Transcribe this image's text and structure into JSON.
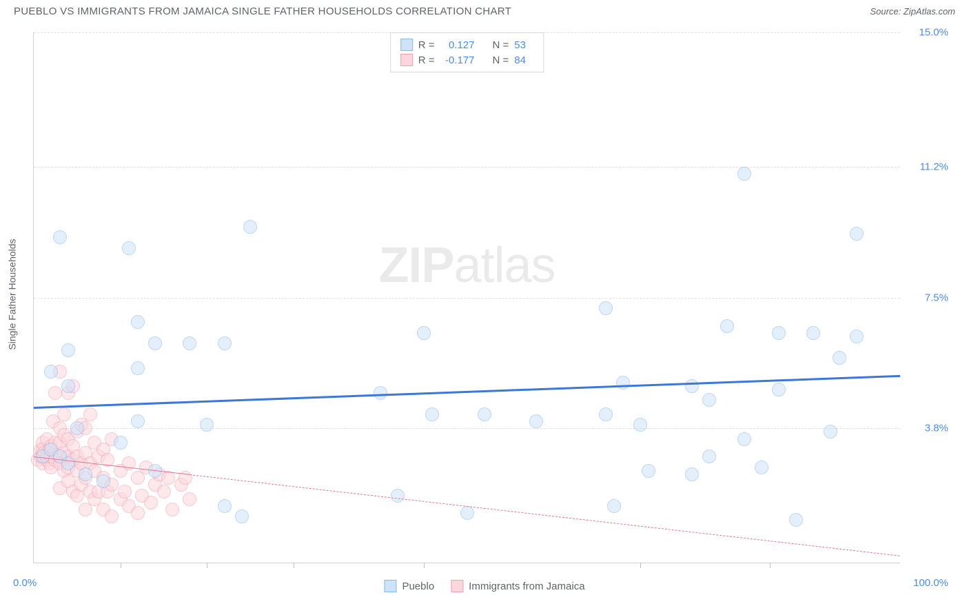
{
  "title": "PUEBLO VS IMMIGRANTS FROM JAMAICA SINGLE FATHER HOUSEHOLDS CORRELATION CHART",
  "source": "Source: ZipAtlas.com",
  "ylabel": "Single Father Households",
  "watermark_bold": "ZIP",
  "watermark_light": "atlas",
  "chart": {
    "type": "scatter",
    "xlim": [
      0,
      100
    ],
    "ylim": [
      0,
      15
    ],
    "xgrid": [
      10,
      20,
      30,
      45,
      70,
      85
    ],
    "ygrid": [
      3.8,
      7.5,
      11.2,
      15.0
    ],
    "xlim_labels": {
      "min": "0.0%",
      "max": "100.0%"
    },
    "ytick_labels": [
      "3.8%",
      "7.5%",
      "11.2%",
      "15.0%"
    ],
    "background_color": "#ffffff",
    "grid_color": "#e0e0e0",
    "point_radius": 10,
    "series": [
      {
        "name": "Pueblo",
        "fill_color": "#cde3f8",
        "stroke_color": "#8ab8e6",
        "fill_opacity": 0.55,
        "stat_r_label": "R =",
        "stat_r": "0.127",
        "stat_n_label": "N =",
        "stat_n": "53",
        "trend": {
          "y_at_xmin": 4.4,
          "y_at_xmax": 5.3,
          "color": "#3b78d8",
          "width": 3,
          "dash": "solid"
        },
        "points": [
          [
            1,
            3.0
          ],
          [
            2,
            3.2
          ],
          [
            2,
            5.4
          ],
          [
            3,
            3.0
          ],
          [
            3,
            9.2
          ],
          [
            4,
            2.8
          ],
          [
            4,
            5.0
          ],
          [
            4,
            6.0
          ],
          [
            5,
            3.8
          ],
          [
            6,
            2.5
          ],
          [
            8,
            2.3
          ],
          [
            10,
            3.4
          ],
          [
            11,
            8.9
          ],
          [
            12,
            4.0
          ],
          [
            12,
            5.5
          ],
          [
            12,
            6.8
          ],
          [
            14,
            6.2
          ],
          [
            14,
            2.6
          ],
          [
            18,
            6.2
          ],
          [
            20,
            3.9
          ],
          [
            22,
            1.6
          ],
          [
            22,
            6.2
          ],
          [
            24,
            1.3
          ],
          [
            25,
            9.5
          ],
          [
            40,
            4.8
          ],
          [
            42,
            1.9
          ],
          [
            45,
            6.5
          ],
          [
            46,
            4.2
          ],
          [
            50,
            1.4
          ],
          [
            52,
            4.2
          ],
          [
            58,
            4.0
          ],
          [
            66,
            4.2
          ],
          [
            66,
            7.2
          ],
          [
            67,
            1.6
          ],
          [
            68,
            5.1
          ],
          [
            70,
            3.9
          ],
          [
            71,
            2.6
          ],
          [
            76,
            2.5
          ],
          [
            76,
            5.0
          ],
          [
            78,
            3.0
          ],
          [
            78,
            4.6
          ],
          [
            80,
            6.7
          ],
          [
            82,
            3.5
          ],
          [
            82,
            11.0
          ],
          [
            84,
            2.7
          ],
          [
            86,
            6.5
          ],
          [
            86,
            4.9
          ],
          [
            88,
            1.2
          ],
          [
            90,
            6.5
          ],
          [
            92,
            3.7
          ],
          [
            93,
            5.8
          ],
          [
            95,
            6.4
          ],
          [
            95,
            9.3
          ]
        ]
      },
      {
        "name": "Immigrants from Jamaica",
        "fill_color": "#fcd6dd",
        "stroke_color": "#ef9fb0",
        "fill_opacity": 0.55,
        "stat_r_label": "R =",
        "stat_r": "-0.177",
        "stat_n_label": "N =",
        "stat_n": "84",
        "trend": {
          "y_at_xmin": 3.0,
          "y_at_xmax": 0.2,
          "color": "#e57393",
          "width": 1.5,
          "dash": "dashed",
          "solid_until_x": 18
        },
        "points": [
          [
            0.5,
            2.9
          ],
          [
            0.8,
            3.0
          ],
          [
            0.8,
            3.2
          ],
          [
            1,
            2.8
          ],
          [
            1,
            3.0
          ],
          [
            1,
            3.2
          ],
          [
            1,
            3.4
          ],
          [
            1.2,
            3.1
          ],
          [
            1.5,
            2.9
          ],
          [
            1.5,
            3.0
          ],
          [
            1.5,
            3.5
          ],
          [
            1.8,
            2.8
          ],
          [
            1.8,
            3.2
          ],
          [
            2,
            2.7
          ],
          [
            2,
            3.0
          ],
          [
            2,
            3.3
          ],
          [
            2.2,
            4.0
          ],
          [
            2.5,
            2.9
          ],
          [
            2.5,
            3.4
          ],
          [
            2.5,
            4.8
          ],
          [
            3,
            2.1
          ],
          [
            3,
            2.8
          ],
          [
            3,
            3.0
          ],
          [
            3,
            3.4
          ],
          [
            3,
            3.8
          ],
          [
            3,
            5.4
          ],
          [
            3.5,
            2.6
          ],
          [
            3.5,
            3.1
          ],
          [
            3.5,
            3.6
          ],
          [
            3.5,
            4.2
          ],
          [
            4,
            2.3
          ],
          [
            4,
            2.7
          ],
          [
            4,
            3.0
          ],
          [
            4,
            3.5
          ],
          [
            4,
            4.8
          ],
          [
            4.5,
            2.0
          ],
          [
            4.5,
            2.9
          ],
          [
            4.5,
            3.3
          ],
          [
            4.5,
            5.0
          ],
          [
            5,
            1.9
          ],
          [
            5,
            2.6
          ],
          [
            5,
            3.0
          ],
          [
            5,
            3.7
          ],
          [
            5.5,
            2.2
          ],
          [
            5.5,
            2.8
          ],
          [
            5.5,
            3.9
          ],
          [
            6,
            1.5
          ],
          [
            6,
            2.4
          ],
          [
            6,
            3.1
          ],
          [
            6,
            3.8
          ],
          [
            6.5,
            2.0
          ],
          [
            6.5,
            2.8
          ],
          [
            6.5,
            4.2
          ],
          [
            7,
            1.8
          ],
          [
            7,
            2.6
          ],
          [
            7,
            3.4
          ],
          [
            7.5,
            2.0
          ],
          [
            7.5,
            3.0
          ],
          [
            8,
            1.5
          ],
          [
            8,
            2.4
          ],
          [
            8,
            3.2
          ],
          [
            8.5,
            2.0
          ],
          [
            8.5,
            2.9
          ],
          [
            9,
            1.3
          ],
          [
            9,
            2.2
          ],
          [
            9,
            3.5
          ],
          [
            10,
            1.8
          ],
          [
            10,
            2.6
          ],
          [
            10.5,
            2.0
          ],
          [
            11,
            1.6
          ],
          [
            11,
            2.8
          ],
          [
            12,
            1.4
          ],
          [
            12,
            2.4
          ],
          [
            12.5,
            1.9
          ],
          [
            13,
            2.7
          ],
          [
            13.5,
            1.7
          ],
          [
            14,
            2.2
          ],
          [
            14.5,
            2.5
          ],
          [
            15,
            2.0
          ],
          [
            15.5,
            2.4
          ],
          [
            16,
            1.5
          ],
          [
            17,
            2.2
          ],
          [
            17.5,
            2.4
          ],
          [
            18,
            1.8
          ]
        ]
      }
    ]
  },
  "legend_bottom": [
    {
      "label": "Pueblo",
      "fill": "#cde3f8",
      "stroke": "#8ab8e6"
    },
    {
      "label": "Immigrants from Jamaica",
      "fill": "#fcd6dd",
      "stroke": "#ef9fb0"
    }
  ]
}
